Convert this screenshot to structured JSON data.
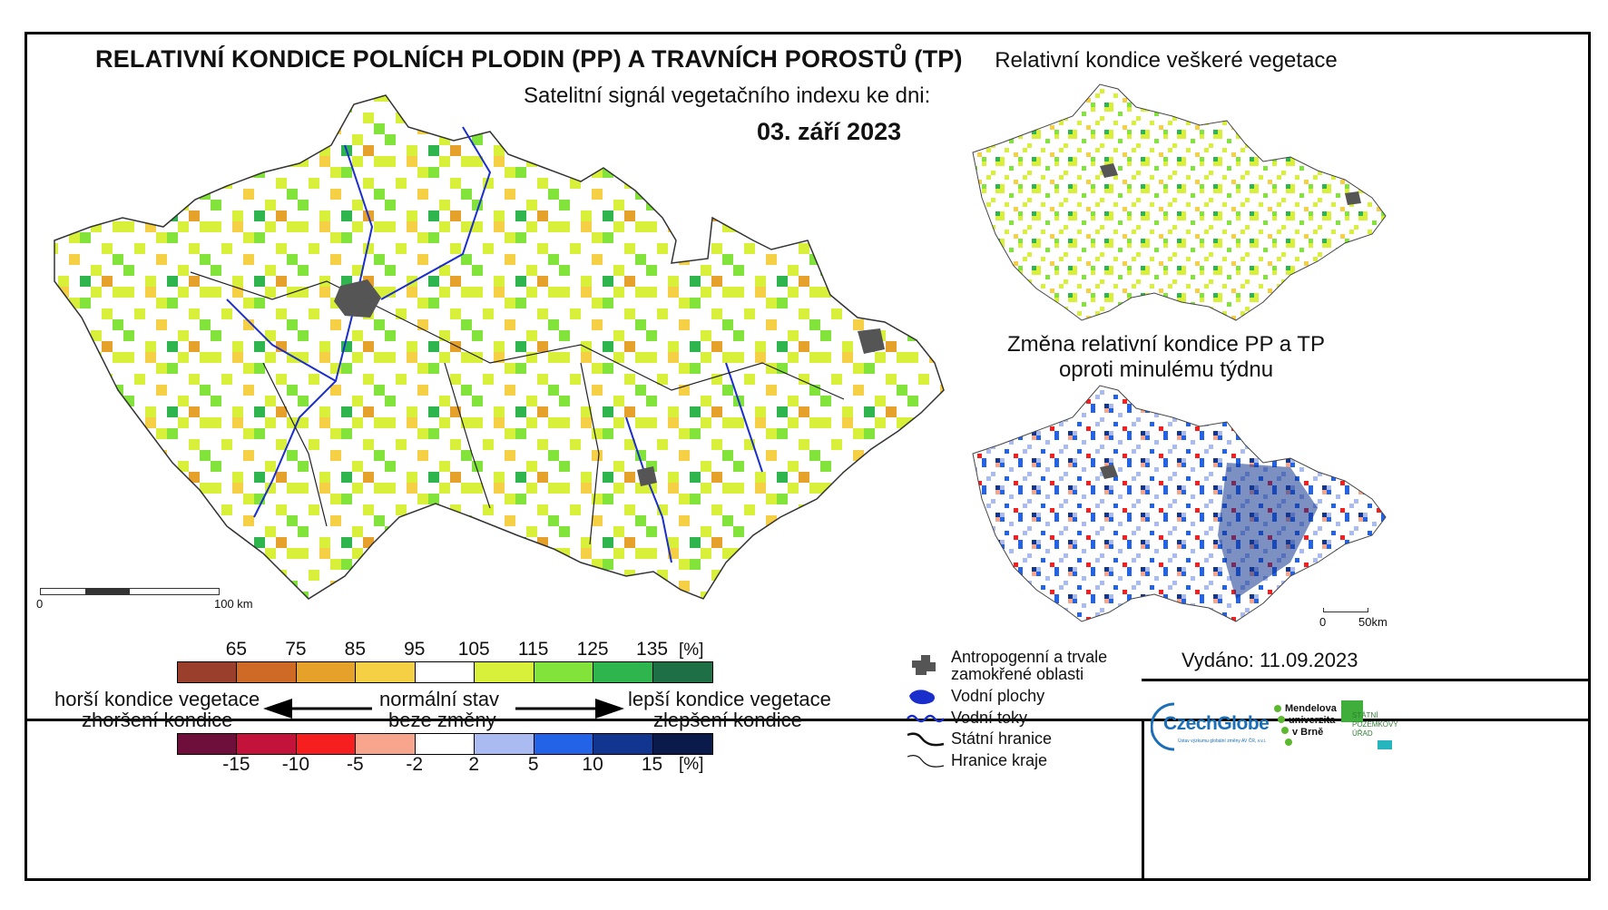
{
  "header": {
    "title": "RELATIVNÍ KONDICE POLNÍCH PLODIN (PP) A TRAVNÍCH POROSTŮ (TP)",
    "subtitle": "Satelitní signál vegetačního indexu ke dni:",
    "date": "03. září 2023"
  },
  "panels": {
    "top_right_title": "Relativní kondice veškeré vegetace",
    "bottom_right_title_line1": "Změna relativní kondice PP a TP",
    "bottom_right_title_line2": "oproti minulému týdnu"
  },
  "scalebars": {
    "main_start": "0",
    "main_end": "100 km",
    "small_start": "0",
    "small_end": "50km"
  },
  "legend_condition": {
    "unit": "[%]",
    "ticks": [
      "65",
      "75",
      "85",
      "95",
      "105",
      "115",
      "125",
      "135"
    ],
    "colors": [
      "#9a3f2b",
      "#cf6a26",
      "#e6a12a",
      "#f5cf44",
      "#ffffff",
      "#d8f03a",
      "#82e43a",
      "#2fb54e",
      "#1e6e46"
    ]
  },
  "legend_change": {
    "unit": "[%]",
    "ticks": [
      "-15",
      "-10",
      "-5",
      "-2",
      "2",
      "5",
      "10",
      "15"
    ],
    "colors": [
      "#6e0e3a",
      "#c4133a",
      "#f61e1e",
      "#f7a58d",
      "#ffffff",
      "#a9bbf0",
      "#2263e8",
      "#12358f",
      "#0a1a4a"
    ]
  },
  "legend_labels": {
    "worse_line1": "horší kondice vegetace",
    "worse_line2": "zhoršení kondice",
    "normal_line1": "normální stav",
    "normal_line2": "beze změny",
    "better_line1": "lepší kondice vegetace",
    "better_line2": "zlepšení kondice"
  },
  "map_legend": {
    "urban_line1": "Antropogenní a trvale",
    "urban_line2": "zamokřené oblasti",
    "water_areas": "Vodní plochy",
    "rivers": "Vodní toky",
    "state_border": "Státní hranice",
    "region_border": "Hranice kraje"
  },
  "issued": "Vydáno: 11.09.2023",
  "logos": {
    "czechglobe": "CzechGlobe",
    "czechglobe_sub": "Ústav výzkumu globální změny AV ČR, v.v.i.",
    "mendel_line1": "Mendelova",
    "mendel_line2": "univerzita",
    "mendel_line3": "v Brně",
    "spu_line1": "STÁTNÍ",
    "spu_line2": "POZEMKOVÝ",
    "spu_line3": "ÚŘAD"
  }
}
